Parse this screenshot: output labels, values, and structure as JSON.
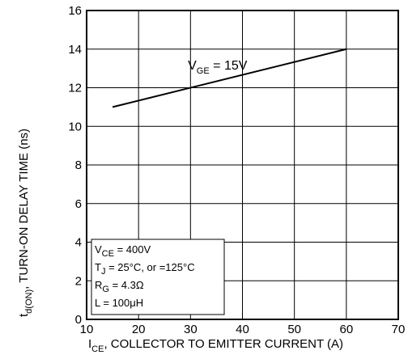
{
  "chart_data": {
    "type": "line",
    "xlim": [
      10,
      70
    ],
    "ylim": [
      0,
      16
    ],
    "x_ticks": [
      10,
      20,
      30,
      40,
      50,
      60,
      70
    ],
    "y_ticks": [
      0,
      2,
      4,
      6,
      8,
      10,
      12,
      14,
      16
    ],
    "grid": true,
    "xlabel": {
      "prefix": "I",
      "sub": "CE",
      "rest": ", COLLECTOR  TO  EMITTER  CURRENT (A)"
    },
    "ylabel": {
      "prefix": "t",
      "sub": "d(ON)",
      "rest": ", TURN-ON DELAY TIME (ns)"
    },
    "series": [
      {
        "points": [
          [
            15,
            11.0
          ],
          [
            60,
            14.0
          ]
        ],
        "color": "#000000",
        "label": {
          "prefix": "V",
          "sub": "GE",
          "rest": " = 15V"
        }
      }
    ],
    "conditions": [
      {
        "prefix": "V",
        "sub": "CE",
        "rest": " = 400V"
      },
      {
        "prefix": "T",
        "sub": "J",
        "rest": " = 25°C, or =125°C"
      },
      {
        "prefix": "R",
        "sub": "G",
        "rest": " = 4.3Ω"
      },
      {
        "prefix": "L",
        "sub": "",
        "rest": " = 100μH"
      }
    ]
  }
}
